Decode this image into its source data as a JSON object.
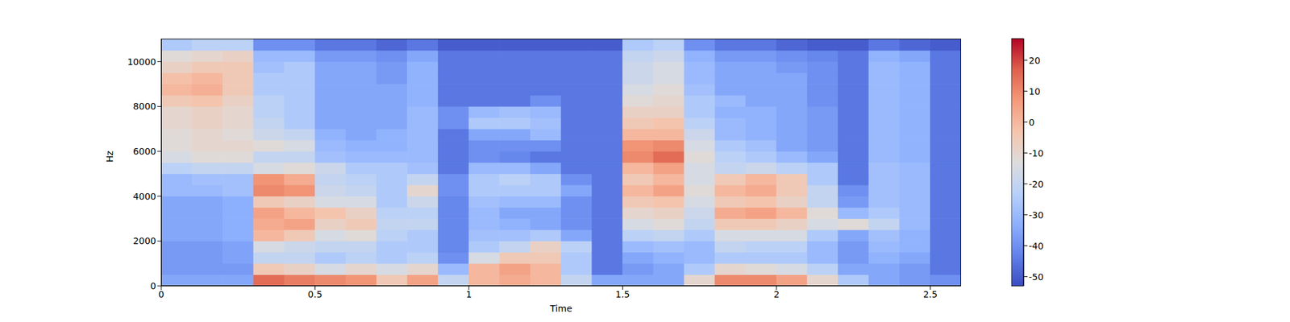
{
  "chart_data": {
    "type": "heatmap",
    "x_label": "Time",
    "y_label": "Hz",
    "xlim": [
      0,
      2.6
    ],
    "ylim": [
      0,
      11025
    ],
    "xticks": [
      0,
      0.5,
      1,
      1.5,
      2,
      2.5
    ],
    "yticks": [
      0,
      2000,
      4000,
      6000,
      8000,
      10000
    ],
    "color": "coolwarm",
    "x_bins": [
      0,
      0.1,
      0.2,
      0.3,
      0.4,
      0.5,
      0.6,
      0.7,
      0.8,
      0.9,
      1,
      1.1,
      1.2,
      1.3,
      1.4,
      1.5,
      1.6,
      1.7,
      1.8,
      1.9,
      2,
      2.1,
      2.2,
      2.3,
      2.4,
      2.5,
      2.6
    ],
    "y_bins": [
      0,
      500,
      1000,
      1500,
      2000,
      2500,
      3000,
      3500,
      4000,
      4500,
      5000,
      5500,
      6000,
      6500,
      7000,
      7500,
      8000,
      8500,
      9000,
      9500,
      10000,
      10500,
      11025
    ],
    "z": [
      [
        -35,
        -38,
        -38,
        -38,
        -35,
        -35,
        -35,
        -35,
        -30,
        -30,
        -22,
        -15,
        -12,
        -12,
        -10,
        -10,
        -5,
        0,
        -2,
        -8,
        -12,
        -25
      ],
      [
        -35,
        -38,
        -38,
        -38,
        -35,
        -35,
        -35,
        -35,
        -30,
        -28,
        -20,
        -12,
        -10,
        -10,
        -8,
        -8,
        -3,
        2,
        0,
        -5,
        -10,
        -22
      ],
      [
        -35,
        -38,
        -36,
        -36,
        -33,
        -33,
        -33,
        -33,
        -28,
        -28,
        -20,
        -12,
        -10,
        -12,
        -10,
        -10,
        -8,
        -5,
        -5,
        -5,
        -8,
        -22
      ],
      [
        15,
        -5,
        -20,
        -15,
        0,
        3,
        5,
        -5,
        10,
        8,
        -15,
        -20,
        -12,
        -18,
        -20,
        -22,
        -22,
        -25,
        -25,
        -28,
        -30,
        -40
      ],
      [
        12,
        -8,
        -20,
        -18,
        -5,
        5,
        0,
        -8,
        8,
        3,
        -12,
        -20,
        -15,
        -20,
        -25,
        -25,
        -25,
        -25,
        -25,
        -25,
        -30,
        -40
      ],
      [
        10,
        -15,
        -25,
        -20,
        -15,
        -8,
        -3,
        -15,
        -18,
        -20,
        -18,
        -28,
        -30,
        -32,
        -35,
        -35,
        -35,
        -35,
        -35,
        -35,
        -38,
        -45
      ],
      [
        8,
        -10,
        -22,
        -20,
        -12,
        -5,
        -8,
        -15,
        -20,
        -22,
        -25,
        -30,
        -32,
        -35,
        -35,
        -35,
        -35,
        -35,
        -35,
        -35,
        -38,
        -45
      ],
      [
        -5,
        -15,
        -25,
        -25,
        -22,
        -20,
        -22,
        -25,
        -25,
        -25,
        -25,
        -30,
        -32,
        -32,
        -35,
        -35,
        -35,
        -35,
        -38,
        -38,
        -40,
        -48
      ],
      [
        5,
        -10,
        -22,
        -25,
        -25,
        -20,
        -22,
        -18,
        -10,
        -20,
        -28,
        -30,
        -30,
        -30,
        -30,
        -30,
        -32,
        -32,
        -32,
        -32,
        -35,
        -45
      ],
      [
        -20,
        -30,
        -40,
        -42,
        -42,
        -42,
        -42,
        -42,
        -40,
        -40,
        -45,
        -45,
        -45,
        -45,
        -40,
        -40,
        -45,
        -45,
        -45,
        -45,
        -45,
        -50
      ],
      [
        0,
        0,
        -15,
        -25,
        -28,
        -30,
        -30,
        -28,
        -25,
        -25,
        -30,
        -40,
        -40,
        -35,
        -25,
        -30,
        -45,
        -45,
        -45,
        -45,
        -45,
        -50
      ],
      [
        3,
        5,
        -5,
        -20,
        -28,
        -32,
        -35,
        -30,
        -25,
        -22,
        -30,
        -42,
        -40,
        -35,
        -25,
        -28,
        -45,
        -45,
        -45,
        -45,
        -45,
        -50
      ],
      [
        0,
        0,
        -5,
        -8,
        -25,
        -35,
        -35,
        -30,
        -25,
        -25,
        -35,
        -45,
        -40,
        -30,
        -28,
        -30,
        -40,
        -45,
        -45,
        -45,
        -45,
        -50
      ],
      [
        -20,
        -25,
        -25,
        -22,
        -35,
        -40,
        -40,
        -40,
        -35,
        -40,
        -45,
        -45,
        -45,
        -45,
        -45,
        -45,
        -45,
        -45,
        -45,
        -45,
        -45,
        -50
      ],
      [
        -35,
        -45,
        -45,
        -45,
        -45,
        -45,
        -45,
        -45,
        -45,
        -45,
        -45,
        -45,
        -45,
        -45,
        -45,
        -45,
        -45,
        -45,
        -45,
        -45,
        -45,
        -50
      ],
      [
        -35,
        -38,
        -35,
        -30,
        -22,
        -15,
        -10,
        -5,
        0,
        -5,
        0,
        10,
        8,
        0,
        -5,
        -8,
        -12,
        -15,
        -18,
        -18,
        -20,
        -25
      ],
      [
        -35,
        -35,
        -32,
        -28,
        -20,
        -12,
        -8,
        -3,
        5,
        0,
        5,
        15,
        10,
        0,
        -3,
        -8,
        -10,
        -12,
        -15,
        -15,
        -18,
        -22
      ],
      [
        -10,
        -25,
        -30,
        -30,
        -25,
        -20,
        -18,
        -15,
        -12,
        -15,
        -15,
        -12,
        -15,
        -18,
        -22,
        -25,
        -25,
        -28,
        -30,
        -30,
        -32,
        -40
      ],
      [
        10,
        -10,
        -25,
        -20,
        -15,
        -5,
        3,
        -5,
        0,
        -5,
        -20,
        -22,
        -25,
        -30,
        -30,
        -32,
        -30,
        -35,
        -35,
        -35,
        -38,
        -45
      ],
      [
        10,
        -12,
        -25,
        -22,
        -15,
        -5,
        5,
        -3,
        3,
        0,
        -18,
        -25,
        -28,
        -32,
        -32,
        -32,
        -35,
        -35,
        -35,
        -35,
        -38,
        -45
      ],
      [
        5,
        -15,
        -25,
        -22,
        -15,
        -8,
        0,
        -8,
        -5,
        -5,
        -22,
        -30,
        -35,
        -35,
        -35,
        -35,
        -35,
        -35,
        -35,
        -38,
        -40,
        -48
      ],
      [
        -10,
        -22,
        -30,
        -30,
        -25,
        -15,
        -12,
        -20,
        -20,
        -25,
        -25,
        -35,
        -38,
        -38,
        -38,
        -38,
        -40,
        -40,
        -40,
        -40,
        -42,
        -50
      ],
      [
        -25,
        -35,
        -38,
        -38,
        -35,
        -12,
        -30,
        -38,
        -40,
        -45,
        -45,
        -45,
        -45,
        -45,
        -45,
        -45,
        -45,
        -45,
        -45,
        -45,
        -45,
        -50
      ],
      [
        -35,
        -35,
        -32,
        -30,
        -28,
        -20,
        -25,
        -28,
        -28,
        -28,
        -28,
        -30,
        -30,
        -30,
        -30,
        -30,
        -30,
        -30,
        -30,
        -30,
        -32,
        -45
      ],
      [
        -38,
        -38,
        -35,
        -32,
        -32,
        -30,
        -30,
        -30,
        -30,
        -30,
        -30,
        -32,
        -32,
        -32,
        -32,
        -32,
        -32,
        -32,
        -32,
        -32,
        -35,
        -48
      ],
      [
        -40,
        -45,
        -45,
        -45,
        -45,
        -45,
        -45,
        -45,
        -45,
        -45,
        -45,
        -45,
        -45,
        -45,
        -45,
        -45,
        -45,
        -45,
        -45,
        -45,
        -45,
        -50
      ]
    ],
    "colorbar": {
      "range": [
        -53,
        27
      ],
      "ticks": [
        -50,
        -40,
        -30,
        -20,
        -10,
        0,
        10,
        20
      ]
    }
  }
}
